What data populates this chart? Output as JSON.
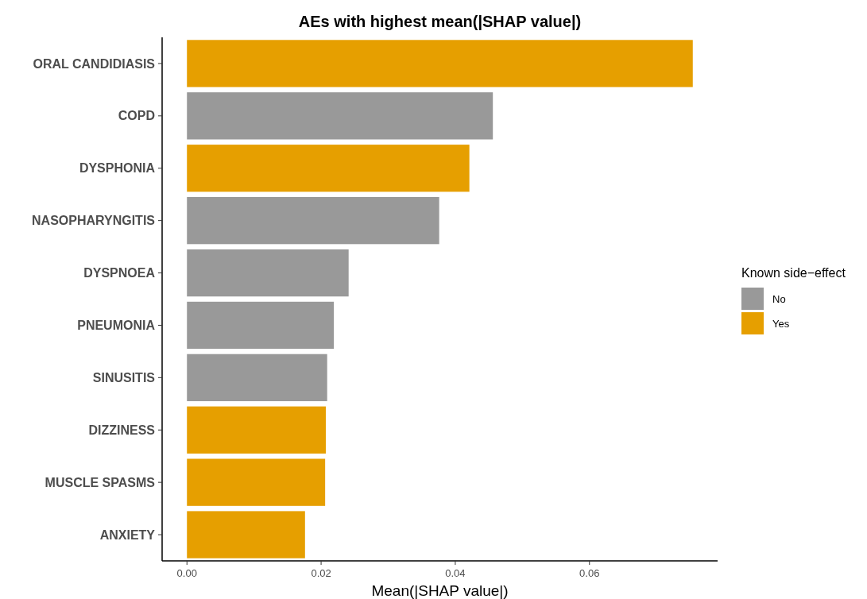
{
  "chart_data": {
    "type": "bar",
    "orientation": "horizontal",
    "title": "AEs with highest mean(|SHAP value|)",
    "xlabel": "Mean(|SHAP value|)",
    "legend_title": "Known side−effect",
    "categories": [
      "ORAL CANDIDIASIS",
      "COPD",
      "DYSPHONIA",
      "NASOPHARYNGITIS",
      "DYSPNOEA",
      "PNEUMONIA",
      "SINUSITIS",
      "DIZZINESS",
      "MUSCLE SPASMS",
      "ANXIETY"
    ],
    "series": [
      {
        "name": "No",
        "color": "#999999",
        "values": [
          null,
          0.0456,
          null,
          0.0376,
          0.0241,
          0.0219,
          0.0209,
          null,
          null,
          null
        ]
      },
      {
        "name": "Yes",
        "color": "#e69f00",
        "values": [
          0.0754,
          null,
          0.0421,
          null,
          null,
          null,
          null,
          0.0207,
          0.0206,
          0.0176
        ]
      }
    ],
    "xlim": [
      -0.0037,
      0.0791
    ],
    "xticks": [
      {
        "value": 0,
        "label": "0.00"
      },
      {
        "value": 0.02,
        "label": "0.02"
      },
      {
        "value": 0.04,
        "label": "0.04"
      },
      {
        "value": 0.06,
        "label": "0.06"
      }
    ],
    "grid": false,
    "legend": "right"
  }
}
